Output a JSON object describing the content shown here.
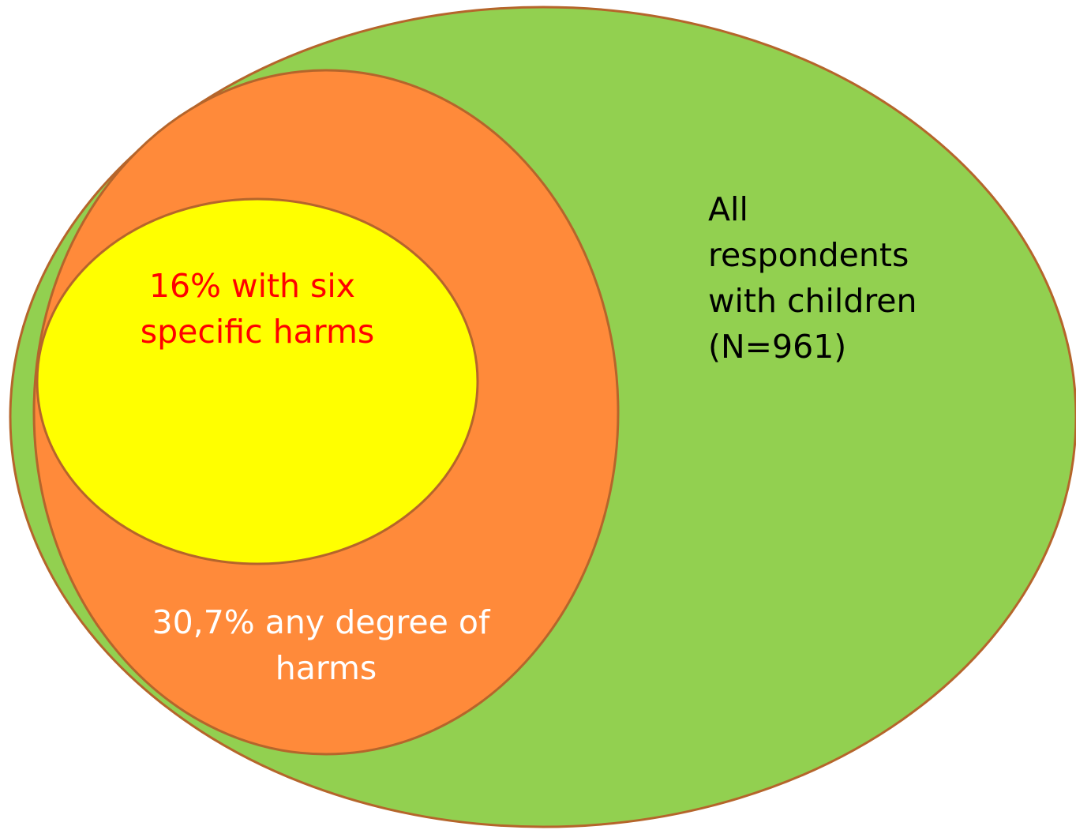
{
  "colors": {
    "outer_fill": "#92d050",
    "middle_fill": "#ff8a3a",
    "inner_fill": "#ffff00",
    "stroke": "#b5652b",
    "outer_text": "#000000",
    "middle_text": "#ffffff",
    "inner_text": "#ff0000"
  },
  "outer": {
    "lines": [
      "All",
      "respondents",
      "with children",
      "(N=961)"
    ]
  },
  "middle": {
    "lines": [
      "30,7% any degree of",
      "harms"
    ]
  },
  "inner": {
    "lines": [
      "16% with six",
      "specific harms"
    ]
  }
}
